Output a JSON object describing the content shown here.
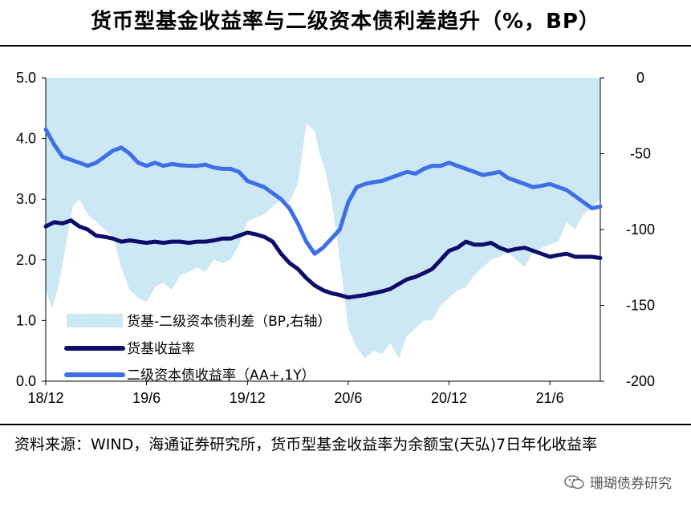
{
  "title": "货币型基金收益率与二级资本债利差趋升（%，BP）",
  "source_text": "资料来源：WIND，海通证券研究所，货币型基金收益率为余额宝(天弘)7日年化收益率",
  "watermark": "珊瑚债券研究",
  "chart_data": {
    "type": "line",
    "title": "货币型基金收益率与二级资本债利差趋升（%，BP）",
    "x_tick_labels": [
      "18/12",
      "19/6",
      "19/12",
      "20/6",
      "20/12",
      "21/6"
    ],
    "x_tick_positions_month_index": [
      0,
      6,
      12,
      18,
      24,
      30
    ],
    "x_range_month_index": [
      0,
      33
    ],
    "y_left": {
      "ticks": [
        "0.0",
        "1.0",
        "2.0",
        "3.0",
        "4.0",
        "5.0"
      ],
      "range": [
        0,
        5
      ]
    },
    "y_right": {
      "ticks": [
        "0",
        "-50",
        "-100",
        "-150",
        "-200"
      ],
      "range": [
        -200,
        0
      ]
    },
    "legend": [
      "货基-二级资本债利差（BP,右轴）",
      "货基收益率",
      "二级资本债收益率（AA+,1Y）"
    ],
    "colors": {
      "spread": "#cce8f5",
      "mmf": "#0d0d6b",
      "bond": "#3f6fe8"
    },
    "series": [
      {
        "name": "货基-二级资本债利差（BP,右轴）",
        "axis": "right",
        "style": "area",
        "x": [
          0,
          0.4,
          0.8,
          1.2,
          1.6,
          2,
          2.5,
          3,
          3.5,
          4,
          4.5,
          5,
          5.5,
          6,
          6.5,
          7,
          7.5,
          8,
          8.5,
          9,
          9.5,
          10,
          10.5,
          11,
          11.5,
          12,
          12.5,
          13,
          13.5,
          14,
          14.5,
          15,
          15.2,
          15.5,
          16,
          16.3,
          16.6,
          17,
          17.5,
          18,
          18.5,
          19,
          19.5,
          20,
          20.5,
          21,
          21.5,
          22,
          22.5,
          23,
          23.5,
          24,
          24.5,
          25,
          25.5,
          26,
          26.5,
          27,
          27.5,
          28,
          28.5,
          29,
          29.5,
          30,
          30.5,
          31,
          31.5,
          32,
          32.5,
          33
        ],
        "values": [
          -140,
          -152,
          -135,
          -110,
          -85,
          -80,
          -90,
          -95,
          -100,
          -105,
          -125,
          -140,
          -145,
          -148,
          -138,
          -135,
          -140,
          -130,
          -128,
          -125,
          -128,
          -120,
          -122,
          -120,
          -110,
          -95,
          -92,
          -90,
          -85,
          -80,
          -82,
          -70,
          -55,
          -30,
          -35,
          -50,
          -60,
          -80,
          -120,
          -165,
          -178,
          -185,
          -180,
          -182,
          -175,
          -185,
          -170,
          -165,
          -160,
          -160,
          -150,
          -145,
          -140,
          -138,
          -130,
          -125,
          -120,
          -118,
          -115,
          -120,
          -125,
          -115,
          -112,
          -110,
          -108,
          -95,
          -100,
          -90,
          -85,
          -80
        ]
      },
      {
        "name": "货基收益率",
        "axis": "left",
        "style": "line",
        "x": [
          0,
          0.5,
          1,
          1.5,
          2,
          2.5,
          3,
          3.5,
          4,
          4.5,
          5,
          5.5,
          6,
          6.5,
          7,
          7.5,
          8,
          8.5,
          9,
          9.5,
          10,
          10.5,
          11,
          11.5,
          12,
          12.5,
          13,
          13.5,
          14,
          14.5,
          15,
          15.5,
          16,
          16.5,
          17,
          17.5,
          18,
          18.5,
          19,
          19.5,
          20,
          20.5,
          21,
          21.5,
          22,
          22.5,
          23,
          23.5,
          24,
          24.5,
          25,
          25.5,
          26,
          26.5,
          27,
          27.5,
          28,
          28.5,
          29,
          29.5,
          30,
          30.5,
          31,
          31.5,
          32,
          32.5,
          33
        ],
        "values": [
          2.55,
          2.62,
          2.6,
          2.65,
          2.55,
          2.5,
          2.4,
          2.38,
          2.35,
          2.3,
          2.32,
          2.3,
          2.28,
          2.3,
          2.28,
          2.3,
          2.3,
          2.28,
          2.3,
          2.3,
          2.32,
          2.35,
          2.35,
          2.4,
          2.45,
          2.42,
          2.38,
          2.3,
          2.1,
          1.95,
          1.85,
          1.7,
          1.58,
          1.5,
          1.45,
          1.42,
          1.38,
          1.4,
          1.42,
          1.45,
          1.48,
          1.52,
          1.6,
          1.68,
          1.72,
          1.78,
          1.85,
          2.0,
          2.15,
          2.2,
          2.3,
          2.25,
          2.25,
          2.28,
          2.2,
          2.15,
          2.18,
          2.2,
          2.15,
          2.1,
          2.05,
          2.08,
          2.1,
          2.05,
          2.05,
          2.05,
          2.03
        ]
      },
      {
        "name": "二级资本债收益率（AA+,1Y）",
        "axis": "left",
        "style": "line",
        "x": [
          0,
          0.5,
          1,
          1.5,
          2,
          2.5,
          3,
          3.5,
          4,
          4.5,
          5,
          5.5,
          6,
          6.5,
          7,
          7.5,
          8,
          8.5,
          9,
          9.5,
          10,
          10.5,
          11,
          11.5,
          12,
          12.5,
          13,
          13.5,
          14,
          14.5,
          15,
          15.5,
          16,
          16.5,
          17,
          17.5,
          18,
          18.5,
          19,
          19.5,
          20,
          20.5,
          21,
          21.5,
          22,
          22.5,
          23,
          23.5,
          24,
          24.5,
          25,
          25.5,
          26,
          26.5,
          27,
          27.5,
          28,
          28.5,
          29,
          29.5,
          30,
          30.5,
          31,
          31.5,
          32,
          32.5,
          33
        ],
        "values": [
          4.15,
          3.9,
          3.7,
          3.65,
          3.6,
          3.55,
          3.6,
          3.7,
          3.8,
          3.85,
          3.75,
          3.6,
          3.55,
          3.6,
          3.55,
          3.58,
          3.56,
          3.55,
          3.55,
          3.57,
          3.52,
          3.5,
          3.5,
          3.45,
          3.3,
          3.25,
          3.2,
          3.1,
          3.0,
          2.85,
          2.6,
          2.3,
          2.1,
          2.2,
          2.35,
          2.5,
          2.95,
          3.2,
          3.25,
          3.28,
          3.3,
          3.35,
          3.4,
          3.45,
          3.42,
          3.5,
          3.55,
          3.55,
          3.6,
          3.55,
          3.5,
          3.45,
          3.4,
          3.42,
          3.45,
          3.35,
          3.3,
          3.25,
          3.2,
          3.22,
          3.25,
          3.2,
          3.15,
          3.05,
          2.95,
          2.85,
          2.88
        ]
      }
    ]
  }
}
